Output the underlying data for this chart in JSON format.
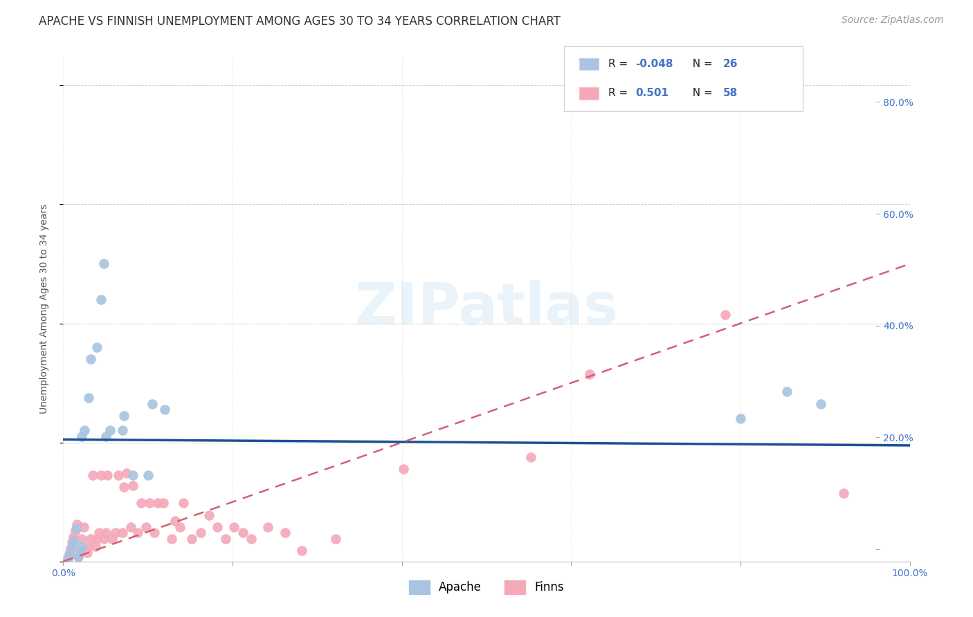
{
  "title": "APACHE VS FINNISH UNEMPLOYMENT AMONG AGES 30 TO 34 YEARS CORRELATION CHART",
  "source": "Source: ZipAtlas.com",
  "ylabel": "Unemployment Among Ages 30 to 34 years",
  "xlim": [
    0,
    1.0
  ],
  "ylim": [
    0,
    0.85
  ],
  "xticks": [
    0.0,
    0.2,
    0.4,
    0.6,
    0.8,
    1.0
  ],
  "xticklabels": [
    "0.0%",
    "",
    "",
    "",
    "",
    "100.0%"
  ],
  "yticks": [
    0.0,
    0.2,
    0.4,
    0.6,
    0.8
  ],
  "yticklabels": [
    "",
    "20.0%",
    "40.0%",
    "60.0%",
    "80.0%"
  ],
  "watermark_text": "ZIPatlas",
  "legend_label1": "Apache",
  "legend_label2": "Finns",
  "legend_R1": "-0.048",
  "legend_N1": "26",
  "legend_R2": "0.501",
  "legend_N2": "58",
  "apache_color": "#a8c4e0",
  "finns_color": "#f4a8b8",
  "apache_line_color": "#1a5296",
  "finns_line_color": "#d06070",
  "background_color": "#ffffff",
  "grid_color": "#cccccc",
  "tick_color": "#4472c4",
  "apache_points_x": [
    0.005,
    0.008,
    0.01,
    0.012,
    0.015,
    0.018,
    0.02,
    0.022,
    0.022,
    0.025,
    0.03,
    0.032,
    0.04,
    0.045,
    0.048,
    0.05,
    0.055,
    0.07,
    0.072,
    0.082,
    0.1,
    0.105,
    0.12,
    0.8,
    0.855,
    0.895
  ],
  "apache_points_y": [
    0.005,
    0.015,
    0.025,
    0.035,
    0.055,
    0.008,
    0.015,
    0.025,
    0.21,
    0.22,
    0.275,
    0.34,
    0.36,
    0.44,
    0.5,
    0.21,
    0.22,
    0.22,
    0.245,
    0.145,
    0.145,
    0.265,
    0.255,
    0.24,
    0.285,
    0.265
  ],
  "finns_points_x": [
    0.005,
    0.007,
    0.009,
    0.01,
    0.012,
    0.014,
    0.016,
    0.018,
    0.02,
    0.022,
    0.024,
    0.028,
    0.03,
    0.032,
    0.035,
    0.038,
    0.04,
    0.042,
    0.045,
    0.048,
    0.05,
    0.052,
    0.058,
    0.062,
    0.065,
    0.07,
    0.072,
    0.075,
    0.08,
    0.082,
    0.088,
    0.092,
    0.098,
    0.102,
    0.108,
    0.112,
    0.118,
    0.128,
    0.132,
    0.138,
    0.142,
    0.152,
    0.162,
    0.172,
    0.182,
    0.192,
    0.202,
    0.212,
    0.222,
    0.242,
    0.262,
    0.282,
    0.322,
    0.402,
    0.552,
    0.622,
    0.782,
    0.922
  ],
  "finns_points_y": [
    0.005,
    0.012,
    0.022,
    0.032,
    0.042,
    0.052,
    0.062,
    0.008,
    0.018,
    0.038,
    0.058,
    0.015,
    0.025,
    0.038,
    0.145,
    0.025,
    0.038,
    0.048,
    0.145,
    0.038,
    0.048,
    0.145,
    0.038,
    0.048,
    0.145,
    0.048,
    0.125,
    0.148,
    0.058,
    0.128,
    0.048,
    0.098,
    0.058,
    0.098,
    0.048,
    0.098,
    0.098,
    0.038,
    0.068,
    0.058,
    0.098,
    0.038,
    0.048,
    0.078,
    0.058,
    0.038,
    0.058,
    0.048,
    0.038,
    0.058,
    0.048,
    0.018,
    0.038,
    0.155,
    0.175,
    0.315,
    0.415,
    0.115
  ],
  "apache_trendline_x": [
    0.0,
    1.0
  ],
  "apache_trendline_y": [
    0.205,
    0.195
  ],
  "finns_trendline_x": [
    0.0,
    1.0
  ],
  "finns_trendline_y": [
    0.0,
    0.5
  ],
  "title_fontsize": 12,
  "axis_label_fontsize": 10,
  "tick_fontsize": 10,
  "source_fontsize": 10,
  "legend_fontsize": 11,
  "watermark_fontsize": 60
}
